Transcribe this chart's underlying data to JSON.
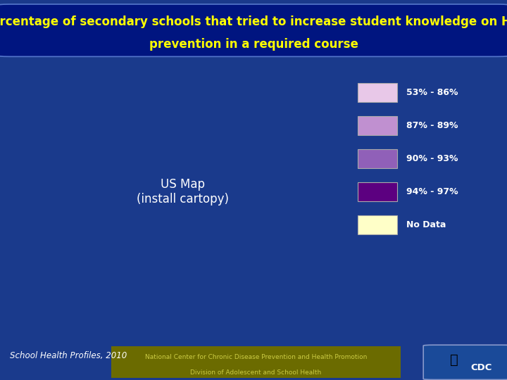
{
  "title_line1": "Percentage of secondary schools that tried to increase student knowledge on HIV",
  "title_line2": "prevention in a required course",
  "title_color": "#FFFF00",
  "title_fontsize": 12,
  "bg_outer": "#1a3a8c",
  "bg_map_box": "#001a6e",
  "legend_items": [
    {
      "label": "53% - 86%",
      "color": "#e8c8e8"
    },
    {
      "label": "87% - 89%",
      "color": "#c090d0"
    },
    {
      "label": "90% - 93%",
      "color": "#9060b8"
    },
    {
      "label": "94% - 97%",
      "color": "#5c0080"
    },
    {
      "label": "No Data",
      "color": "#ffffc8"
    }
  ],
  "legend_text_color": "#ffffff",
  "footer_text1": "School Health Profiles, 2010",
  "footer_text1_color": "#ffffff",
  "footer_text2": "National Center for Chronic Disease Prevention and Health Promotion",
  "footer_text3": "Division of Adolescent and School Health",
  "footer_text_color": "#cccc44",
  "footer_bg": "#6b6b00",
  "state_colors": {
    "AL": "#c090d0",
    "AK": "#c090d0",
    "AZ": "#c090d0",
    "AR": "#5c0080",
    "CA": "#9060b8",
    "CO": "#e8c8e8",
    "CT": "#e8c8e8",
    "DE": "#9060b8",
    "FL": "#c090d0",
    "GA": "#c090d0",
    "HI": "#c090d0",
    "ID": "#5c0080",
    "IL": "#5c0080",
    "IN": "#c090d0",
    "IA": "#9060b8",
    "KS": "#9060b8",
    "KY": "#9060b8",
    "LA": "#c090d0",
    "ME": "#9060b8",
    "MD": "#5c0080",
    "MA": "#e8c8e8",
    "MI": "#5c0080",
    "MN": "#9060b8",
    "MS": "#e8c8e8",
    "MO": "#9060b8",
    "MT": "#9060b8",
    "NE": "#ffffc8",
    "NV": "#9060b8",
    "NH": "#9060b8",
    "NJ": "#c090d0",
    "NM": "#c090d0",
    "NY": "#9060b8",
    "NC": "#e8c8e8",
    "ND": "#9060b8",
    "OH": "#c090d0",
    "OK": "#c090d0",
    "OR": "#9060b8",
    "PA": "#c090d0",
    "RI": "#e8c8e8",
    "SC": "#5c0080",
    "SD": "#9060b8",
    "TN": "#c090d0",
    "TX": "#e8c8e8",
    "UT": "#e8c8e8",
    "VT": "#9060b8",
    "VA": "#e8c8e8",
    "WA": "#9060b8",
    "WV": "#c090d0",
    "WI": "#5c0080",
    "WY": "#9060b8",
    "DC": "#5c0080"
  }
}
